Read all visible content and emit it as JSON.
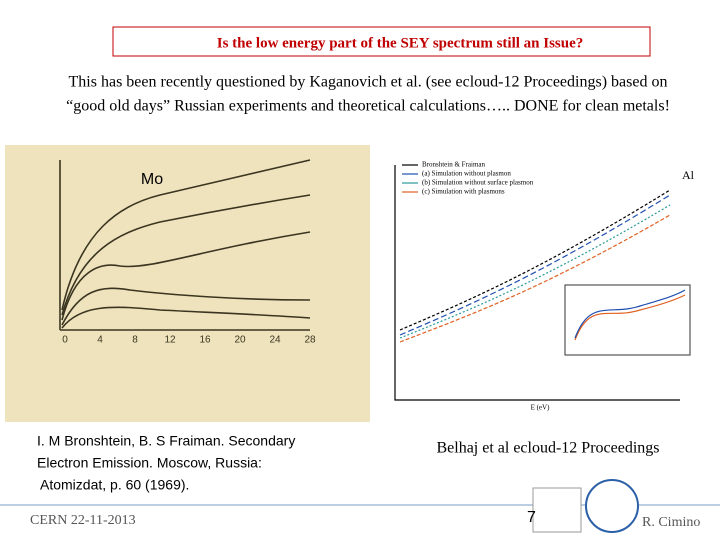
{
  "header": {
    "title": "Is the low energy part of the SEY spectrum still an Issue?"
  },
  "body": {
    "lines": [
      "This has been recently questioned by Kaganovich et al. (see ecloud-12 Proceedings) based on",
      "“good old days” Russian experiments and theoretical calculations….. DONE for clean metals!"
    ]
  },
  "figures": [
    {
      "label": "Mo",
      "x_ticks": [
        "0",
        "4",
        "8",
        "12",
        "16",
        "20",
        "24",
        "28"
      ],
      "caption": [
        "I. M Bronshtein, B. S Fraiman. Secondary",
        "Electron Emission. Moscow, Russia:",
        "Atomizdat, p. 60 (1969)."
      ]
    },
    {
      "label": "Al",
      "legend": [
        "Bronshtein & Fraiman",
        "(a) Simulation without plasmon",
        "(b) Simulation without surface plasmon",
        "(c) Simulation with plasmons"
      ],
      "x_axis": "E (eV)",
      "caption": [
        "Belhaj et al ecloud-12 Proceedings"
      ]
    }
  ],
  "footer": {
    "left": "CERN 22-11-2013",
    "page": "7",
    "right": "R. Cimino"
  }
}
